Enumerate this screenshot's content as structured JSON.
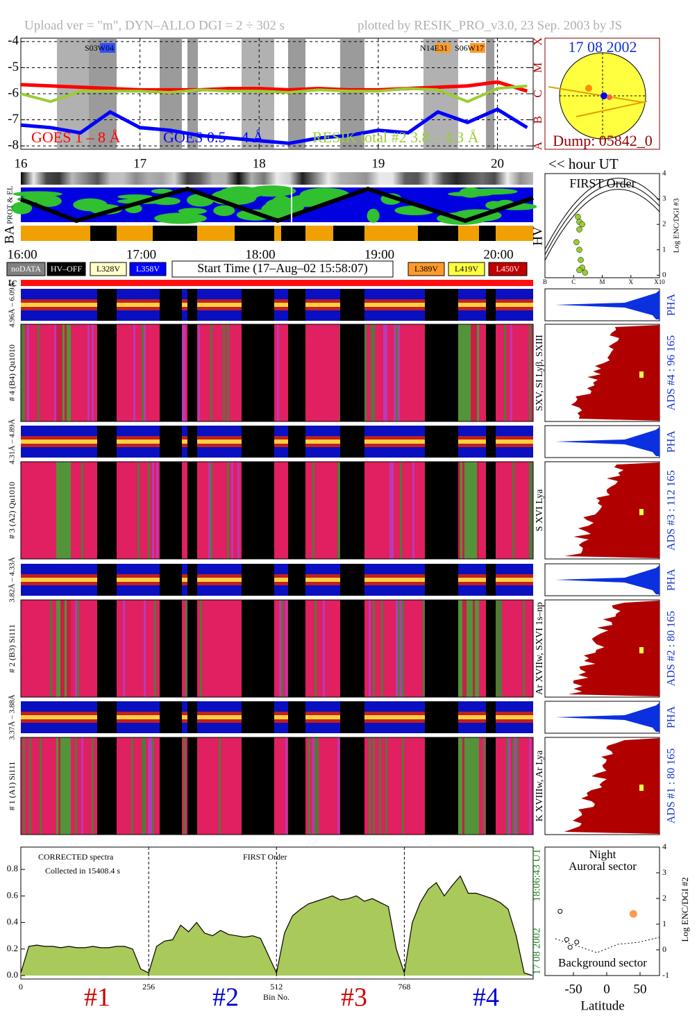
{
  "header": {
    "left": "Upload ver = \"m\", DYN–ALLO DGI =   2 ÷ 302 s",
    "right": "plotted by RESIK_PRO_v3.0, 23 Sep. 2003 by JS"
  },
  "sun_panel": {
    "date": "17 08 2002",
    "dump": "Dump: 05842_0"
  },
  "orbit_panel": {
    "labels": [
      "PROT & EL",
      "BA",
      "HV"
    ],
    "times": [
      "16:00",
      "17:00",
      "18:00",
      "19:00",
      "20:00"
    ],
    "legend": [
      {
        "label": "noDATA",
        "color": "#808080",
        "text_color": "#ffffff"
      },
      {
        "label": "HV–OFF",
        "color": "#000000",
        "text_color": "#ffffff"
      },
      {
        "label": "L328V",
        "color": "#ffffc8",
        "text_color": "#000000"
      },
      {
        "label": "L358V",
        "color": "#0000ff",
        "text_color": "#ffffff"
      },
      {
        "label": "L389V",
        "color": "#ff9a2a",
        "text_color": "#000000"
      },
      {
        "label": "L419V",
        "color": "#ffff40",
        "text_color": "#000000"
      },
      {
        "label": "L450V",
        "color": "#c00000",
        "text_color": "#ffffff"
      }
    ],
    "start_time": "Start Time (17–Aug–02 15:58:07)",
    "tc": "tc"
  },
  "channels": [
    {
      "pha_range": "4.96Å – 6.09Å",
      "name": "# 4 (B4) Qu1010",
      "lines": "SXV, SI Lyβ, SXIII",
      "ads": "ADS #4 :   96 165",
      "pha": "PHA"
    },
    {
      "pha_range": "4.31Å – 4.89Å",
      "name": "# 3 (A2) Qu1010",
      "lines": "S XVI Lya",
      "ads": "ADS #3 :   112 165",
      "pha": "PHA"
    },
    {
      "pha_range": "3.82Å – 4.33Å",
      "name": "# 2 (B3) Si111",
      "lines": "Ar XVIIw, SXVI 1s–np",
      "ads": "ADS #2 :   80 165",
      "pha": "PHA"
    },
    {
      "pha_range": "3.37Å – 3.88Å",
      "name": "# 1 (A1) Si111",
      "lines": "K XVIIIw, Ar Lya",
      "ads": "ADS #1 :   80 165",
      "pha": "PHA"
    }
  ],
  "chart_data": [
    {
      "type": "line",
      "xlabel": "<< hour UT",
      "grid": true,
      "x": [
        16,
        16.25,
        16.5,
        16.75,
        17,
        17.25,
        17.5,
        17.75,
        18,
        18.25,
        18.5,
        18.75,
        19,
        19.25,
        19.5,
        19.75,
        20,
        20.25
      ],
      "series": [
        {
          "name": "GOES 1 – 8 Å",
          "color": "#ff0000",
          "values": [
            -5.65,
            -5.7,
            -5.75,
            -5.8,
            -5.85,
            -5.85,
            -5.85,
            -5.8,
            -5.8,
            -5.85,
            -5.8,
            -5.85,
            -5.85,
            -5.8,
            -5.75,
            -5.7,
            -5.55,
            -5.9
          ]
        },
        {
          "name": "GOES 0.5 – 4 Å",
          "color": "#0000ff",
          "values": [
            -7.2,
            -7.3,
            -7.5,
            -6.7,
            -7.3,
            -7.4,
            -7.6,
            -7.7,
            -7.8,
            -7.9,
            -7.7,
            -7.6,
            -7.4,
            -7.5,
            -6.7,
            -7.1,
            -6.6,
            -7.3
          ]
        },
        {
          "name": "RESIK total #2 3.8 – 4.3 Å",
          "color": "#9acd32",
          "values": [
            -6.0,
            -6.3,
            -5.9,
            -5.9,
            -5.9,
            -5.95,
            -5.85,
            -5.9,
            -5.9,
            -5.95,
            -5.85,
            -5.9,
            -5.9,
            -5.8,
            -5.85,
            -6.3,
            -5.8,
            -5.7
          ]
        }
      ],
      "xlim": [
        16,
        20.3
      ],
      "xticks": [
        16,
        17,
        18,
        19,
        20
      ],
      "ylim": [
        -8.13,
        -3.87
      ],
      "yticks": [
        -4,
        -5,
        -6,
        -7,
        -8
      ],
      "y2lim": [
        -8.13,
        -3.87
      ],
      "y2ticks": [
        {
          "value": -4,
          "label": "X"
        },
        {
          "value": -5,
          "label": "M"
        },
        {
          "value": -6,
          "label": "C"
        },
        {
          "value": -7,
          "label": "B"
        },
        {
          "value": -8,
          "label": "A"
        }
      ],
      "annotations": [
        "S03W04",
        "N14E31",
        "S06W17"
      ]
    },
    {
      "type": "scatter",
      "title": "FIRST Order",
      "ylabel": "Log ENC/DGI #3",
      "x": [
        1.15,
        1.2,
        1.3,
        1.2,
        1.1,
        1.2,
        1.25,
        1.3,
        1.2,
        1.4
      ],
      "series": [
        {
          "color": "#9acd32",
          "values": [
            2.3,
            2.1,
            2.0,
            1.8,
            1.3,
            1.0,
            0.6,
            0.3,
            0.2,
            0.1
          ]
        }
      ],
      "xlim": [
        0,
        4
      ],
      "xticks": [
        {
          "value": 0,
          "label": "B"
        },
        {
          "value": 1,
          "label": "C"
        },
        {
          "value": 2,
          "label": "M"
        },
        {
          "value": 3,
          "label": "X"
        },
        {
          "value": 4,
          "label": "X10"
        }
      ],
      "ylim": [
        -0.1,
        4
      ],
      "yticks": [
        0,
        1,
        2,
        3,
        4
      ]
    },
    {
      "type": "area",
      "xlabel": "Bin No.",
      "color": "#a9c95a",
      "x": [
        0,
        16,
        32,
        48,
        64,
        80,
        96,
        112,
        128,
        144,
        160,
        176,
        192,
        208,
        224,
        240,
        256,
        272,
        288,
        304,
        320,
        336,
        352,
        368,
        384,
        400,
        416,
        432,
        448,
        464,
        480,
        496,
        512,
        528,
        544,
        560,
        576,
        592,
        608,
        624,
        640,
        656,
        672,
        688,
        704,
        720,
        736,
        752,
        768,
        784,
        800,
        816,
        832,
        848,
        864,
        880,
        896,
        912,
        928,
        944,
        960,
        976,
        992,
        1008,
        1024
      ],
      "values": [
        0.02,
        0.22,
        0.23,
        0.22,
        0.22,
        0.21,
        0.22,
        0.21,
        0.21,
        0.22,
        0.21,
        0.21,
        0.22,
        0.22,
        0.2,
        0.05,
        0.02,
        0.22,
        0.26,
        0.27,
        0.38,
        0.33,
        0.4,
        0.32,
        0.3,
        0.34,
        0.31,
        0.3,
        0.29,
        0.3,
        0.28,
        0.15,
        0.02,
        0.32,
        0.45,
        0.5,
        0.54,
        0.56,
        0.58,
        0.6,
        0.57,
        0.58,
        0.6,
        0.56,
        0.58,
        0.55,
        0.52,
        0.2,
        0.02,
        0.4,
        0.55,
        0.65,
        0.7,
        0.6,
        0.68,
        0.75,
        0.62,
        0.62,
        0.6,
        0.58,
        0.55,
        0.5,
        0.3,
        0.02,
        0.0
      ],
      "xlim": [
        0,
        1026
      ],
      "xticks": [
        0,
        256,
        512,
        768
      ],
      "ylim": [
        -0.026,
        0.968
      ],
      "yticks": [
        {
          "value": 0,
          "label": "0.0"
        },
        0.2,
        0.4,
        0.6,
        0.8
      ],
      "annotations": [
        "CORRECTED spectra",
        "Collected in 15408.4 s",
        "FIRST Order",
        "18:06:43 UT",
        "17 08 2002"
      ],
      "segment_labels": [
        {
          "label": "#1",
          "color": "#d00000"
        },
        {
          "label": "#2",
          "color": "#0000d0"
        },
        {
          "label": "#3",
          "color": "#d00000"
        },
        {
          "label": "#4",
          "color": "#0000d0"
        }
      ]
    },
    {
      "type": "scatter",
      "xlabel": "Latitude",
      "ylabel": "Log ENC/DGI #2",
      "x": [
        40,
        -70,
        -60,
        -55,
        -45
      ],
      "series": [
        {
          "color": "#ff9a50",
          "values": [
            1.4,
            null,
            null,
            null,
            null
          ]
        },
        {
          "color": "none",
          "values": [
            null,
            1.5,
            0.4,
            0.1,
            0.3
          ]
        }
      ],
      "xlim": [
        -92.7,
        79.2
      ],
      "xticks": [
        -50,
        0,
        50
      ],
      "ylim": [
        -1,
        4
      ],
      "yticks": [
        -1,
        0,
        1,
        2,
        3,
        4
      ],
      "annotations": [
        "Night",
        "Auroral sector",
        "Background sector"
      ]
    }
  ]
}
